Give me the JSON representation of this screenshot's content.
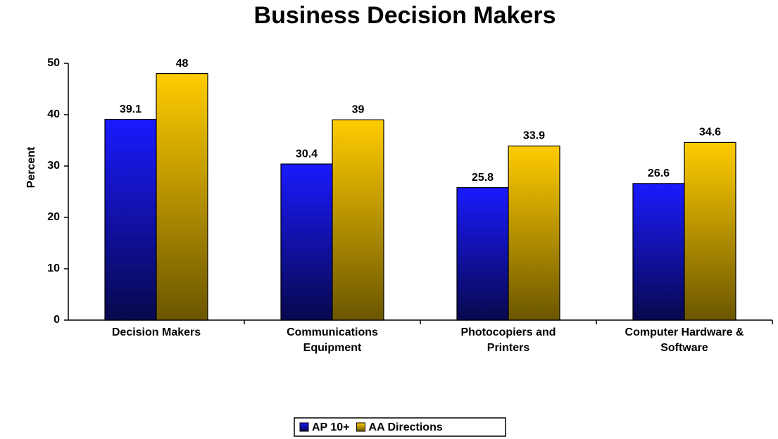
{
  "chart_data": {
    "type": "bar",
    "title": "Business Decision Makers",
    "y_label": "Percent",
    "categories": [
      "Decision Makers",
      "Communications Equipment",
      "Photocopiers and Printers",
      "Computer Hardware & Software"
    ],
    "series": [
      {
        "name": "AP 10+",
        "color": "#1a1aff",
        "values": [
          39.1,
          30.4,
          25.8,
          26.6
        ]
      },
      {
        "name": "AA Directions",
        "color": "#ffcc00",
        "values": [
          48,
          39,
          33.9,
          34.6
        ]
      }
    ],
    "ylim": [
      0,
      50
    ],
    "yticks": [
      0,
      10,
      20,
      30,
      40,
      50
    ],
    "legend": "bottom"
  }
}
